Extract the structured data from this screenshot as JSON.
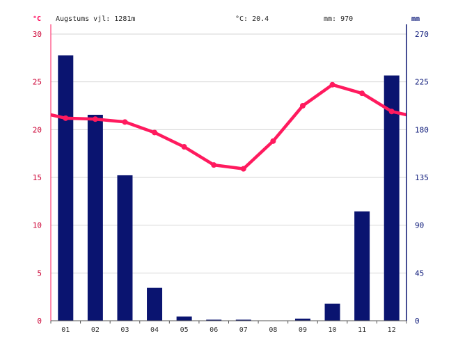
{
  "header": {
    "altitude": "Augstums vjl: 1281m",
    "avg_temp": "°C: 20.4",
    "precip": "mm: 970",
    "unit_left": "°C",
    "unit_right": "mm"
  },
  "colors": {
    "temperature": "#ff1a5e",
    "precipitation": "#0a1470",
    "left_axis_text": "#cc0033",
    "right_axis_text": "#0d1a7a",
    "grid": "#d6d6d6"
  },
  "chart_data": {
    "type": "bar+line",
    "categories": [
      "01",
      "02",
      "03",
      "04",
      "05",
      "06",
      "07",
      "08",
      "09",
      "10",
      "11",
      "12"
    ],
    "series": [
      {
        "name": "",
        "type": "bar",
        "axis": "right",
        "values": [
          250,
          194,
          137,
          31,
          4,
          1,
          1,
          0,
          2,
          16,
          103,
          231
        ]
      },
      {
        "name": "",
        "type": "line",
        "axis": "left",
        "values": [
          21.2,
          21.1,
          20.8,
          19.7,
          18.2,
          16.3,
          15.9,
          18.8,
          22.5,
          24.7,
          23.8,
          21.9
        ]
      }
    ],
    "y_left": {
      "ticks": [
        "0",
        "5",
        "10",
        "15",
        "20",
        "25",
        "30"
      ],
      "ylim": [
        0,
        30
      ]
    },
    "y_right": {
      "ticks": [
        "0",
        "45",
        "90",
        "135",
        "180",
        "225",
        "270"
      ],
      "ylim": [
        0,
        270
      ]
    },
    "grid": true
  }
}
